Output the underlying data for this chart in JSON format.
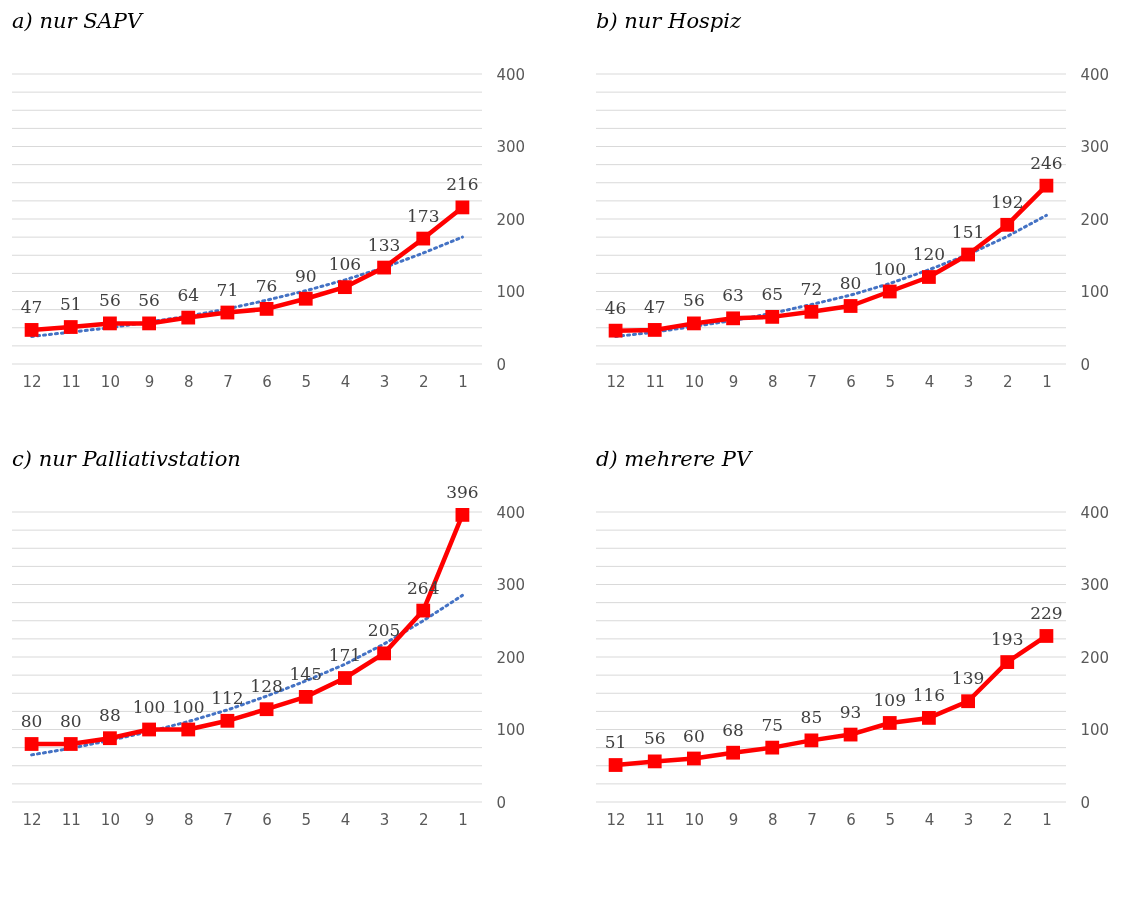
{
  "chart_data": [
    {
      "type": "line",
      "title": "a) nur SAPV",
      "categories": [
        "12",
        "11",
        "10",
        "9",
        "8",
        "7",
        "6",
        "5",
        "4",
        "3",
        "2",
        "1"
      ],
      "ylim": [
        0,
        400
      ],
      "yticks": [
        0,
        {
          "value": 25,
          "label": null
        },
        {
          "value": 50,
          "label": null
        },
        {
          "value": 75,
          "label": null
        },
        100,
        {
          "value": 125,
          "label": null
        },
        {
          "value": 150,
          "label": null
        },
        {
          "value": 175,
          "label": null
        },
        200,
        {
          "value": 225,
          "label": null
        },
        {
          "value": 250,
          "label": null
        },
        {
          "value": 275,
          "label": null
        },
        300,
        {
          "value": 325,
          "label": null
        },
        {
          "value": 350,
          "label": null
        },
        {
          "value": 375,
          "label": null
        },
        400
      ],
      "grid": "y",
      "marker": "square",
      "series": [
        {
          "color": "#ff0000",
          "values": [
            47,
            51,
            56,
            56,
            64,
            71,
            76,
            90,
            106,
            133,
            173,
            216
          ],
          "value_labels": [
            "47",
            "51",
            "56",
            "56",
            "64",
            "71",
            "76",
            "90",
            "106",
            "133",
            "173",
            "216"
          ]
        },
        {
          "type": "line",
          "color": "#4472c4",
          "line_style": "dotted",
          "marker": "none",
          "values": [
            38,
            44,
            50,
            58,
            66,
            76,
            88,
            101,
            116,
            133,
            153,
            175
          ]
        }
      ]
    },
    {
      "type": "line",
      "title": "b) nur Hospiz",
      "categories": [
        "12",
        "11",
        "10",
        "9",
        "8",
        "7",
        "6",
        "5",
        "4",
        "3",
        "2",
        "1"
      ],
      "ylim": [
        0,
        400
      ],
      "yticks": [
        0,
        {
          "value": 25,
          "label": null
        },
        {
          "value": 50,
          "label": null
        },
        {
          "value": 75,
          "label": null
        },
        100,
        {
          "value": 125,
          "label": null
        },
        {
          "value": 150,
          "label": null
        },
        {
          "value": 175,
          "label": null
        },
        200,
        {
          "value": 225,
          "label": null
        },
        {
          "value": 250,
          "label": null
        },
        {
          "value": 275,
          "label": null
        },
        300,
        {
          "value": 325,
          "label": null
        },
        {
          "value": 350,
          "label": null
        },
        {
          "value": 375,
          "label": null
        },
        400
      ],
      "grid": "y",
      "marker": "square",
      "series": [
        {
          "color": "#ff0000",
          "values": [
            46,
            47,
            56,
            63,
            65,
            72,
            80,
            100,
            120,
            151,
            192,
            246
          ],
          "value_labels": [
            "46",
            "47",
            "56",
            "63",
            "65",
            "72",
            "80",
            "100",
            "120",
            "151",
            "192",
            "246"
          ]
        },
        {
          "type": "line",
          "color": "#4472c4",
          "line_style": "dotted",
          "marker": "none",
          "values": [
            38,
            44,
            52,
            60,
            70,
            82,
            95,
            111,
            130,
            151,
            176,
            205
          ]
        }
      ]
    },
    {
      "type": "line",
      "title": "c) nur Palliativstation",
      "categories": [
        "12",
        "11",
        "10",
        "9",
        "8",
        "7",
        "6",
        "5",
        "4",
        "3",
        "2",
        "1"
      ],
      "ylim": [
        0,
        400
      ],
      "yticks": [
        0,
        {
          "value": 25,
          "label": null
        },
        {
          "value": 50,
          "label": null
        },
        {
          "value": 75,
          "label": null
        },
        100,
        {
          "value": 125,
          "label": null
        },
        {
          "value": 150,
          "label": null
        },
        {
          "value": 175,
          "label": null
        },
        200,
        {
          "value": 225,
          "label": null
        },
        {
          "value": 250,
          "label": null
        },
        {
          "value": 275,
          "label": null
        },
        300,
        {
          "value": 325,
          "label": null
        },
        {
          "value": 350,
          "label": null
        },
        {
          "value": 375,
          "label": null
        },
        400
      ],
      "grid": "y",
      "marker": "square",
      "series": [
        {
          "color": "#ff0000",
          "values": [
            80,
            80,
            88,
            100,
            100,
            112,
            128,
            145,
            171,
            205,
            264,
            396
          ],
          "value_labels": [
            "80",
            "80",
            "88",
            "100",
            "100",
            "112",
            "128",
            "145",
            "171",
            "205",
            "264",
            "396"
          ]
        },
        {
          "type": "line",
          "color": "#4472c4",
          "line_style": "dotted",
          "marker": "none",
          "values": [
            65,
            74,
            85,
            97,
            111,
            127,
            146,
            167,
            190,
            218,
            250,
            285
          ]
        }
      ]
    },
    {
      "type": "line",
      "title": "d) mehrere PV",
      "categories": [
        "12",
        "11",
        "10",
        "9",
        "8",
        "7",
        "6",
        "5",
        "4",
        "3",
        "2",
        "1"
      ],
      "ylim": [
        0,
        400
      ],
      "yticks": [
        0,
        {
          "value": 25,
          "label": null
        },
        {
          "value": 50,
          "label": null
        },
        {
          "value": 75,
          "label": null
        },
        100,
        {
          "value": 125,
          "label": null
        },
        {
          "value": 150,
          "label": null
        },
        {
          "value": 175,
          "label": null
        },
        200,
        {
          "value": 225,
          "label": null
        },
        {
          "value": 250,
          "label": null
        },
        {
          "value": 275,
          "label": null
        },
        300,
        {
          "value": 325,
          "label": null
        },
        {
          "value": 350,
          "label": null
        },
        {
          "value": 375,
          "label": null
        },
        400
      ],
      "grid": "y",
      "marker": "square",
      "series": [
        {
          "color": "#ff0000",
          "values": [
            51,
            56,
            60,
            68,
            75,
            85,
            93,
            109,
            116,
            139,
            193,
            229
          ],
          "value_labels": [
            "51",
            "56",
            "60",
            "68",
            "75",
            "85",
            "93",
            "109",
            "116",
            "139",
            "193",
            "229"
          ]
        }
      ]
    }
  ]
}
